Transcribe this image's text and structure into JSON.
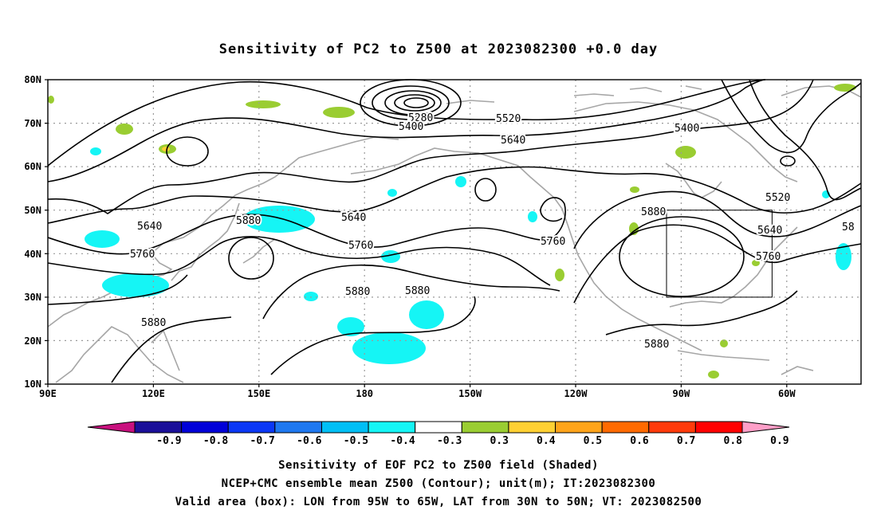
{
  "title": "Sensitivity of PC2 to Z500 at 2023082300 +0.0 day",
  "lat_labels": [
    "80N",
    "70N",
    "60N",
    "50N",
    "40N",
    "30N",
    "20N",
    "10N"
  ],
  "lon_labels": [
    "90E",
    "120E",
    "150E",
    "180",
    "150W",
    "120W",
    "90W",
    "60W"
  ],
  "contour_labels": [
    {
      "text": "5280"
    },
    {
      "text": "5400"
    },
    {
      "text": "5520"
    },
    {
      "text": "5640"
    },
    {
      "text": "5400"
    },
    {
      "text": "5520"
    },
    {
      "text": "5640"
    },
    {
      "text": "5760"
    },
    {
      "text": "5640"
    },
    {
      "text": "5640"
    },
    {
      "text": "5880"
    },
    {
      "text": "5760"
    },
    {
      "text": "5760"
    },
    {
      "text": "5760"
    },
    {
      "text": "5880"
    },
    {
      "text": "5880"
    },
    {
      "text": "5880"
    },
    {
      "text": "5880"
    },
    {
      "text": "5880"
    },
    {
      "text": "58"
    }
  ],
  "colorbar": {
    "labels": [
      "-0.9",
      "-0.8",
      "-0.7",
      "-0.6",
      "-0.5",
      "-0.4",
      "-0.3",
      "0.3",
      "0.4",
      "0.5",
      "0.6",
      "0.7",
      "0.8",
      "0.9"
    ],
    "colors": [
      "#1a0f99",
      "#0000d8",
      "#0a37f5",
      "#1e78f0",
      "#00bff5",
      "#15f5f5",
      "#ffffff",
      "#9acd32",
      "#ffd033",
      "#ffa41a",
      "#ff6a00",
      "#ff3a0a",
      "#ff0000"
    ],
    "left_arrow_color": "#c8107e",
    "right_arrow_color": "#ff9fc8"
  },
  "footer": [
    "Sensitivity of EOF PC2 to Z500 field (Shaded)",
    "NCEP+CMC ensemble mean Z500 (Contour); unit(m); IT:2023082300",
    "Valid area (box): LON from 95W to 65W, LAT from 30N to 50N; VT: 2023082500"
  ],
  "colors": {
    "contour": "#000000",
    "coastline": "#a6a6a6",
    "grid": "#9a9a9a",
    "negative_shade": "#15f5f5",
    "positive_shade": "#9acd32",
    "positive_shade_2": "#ffd033"
  }
}
